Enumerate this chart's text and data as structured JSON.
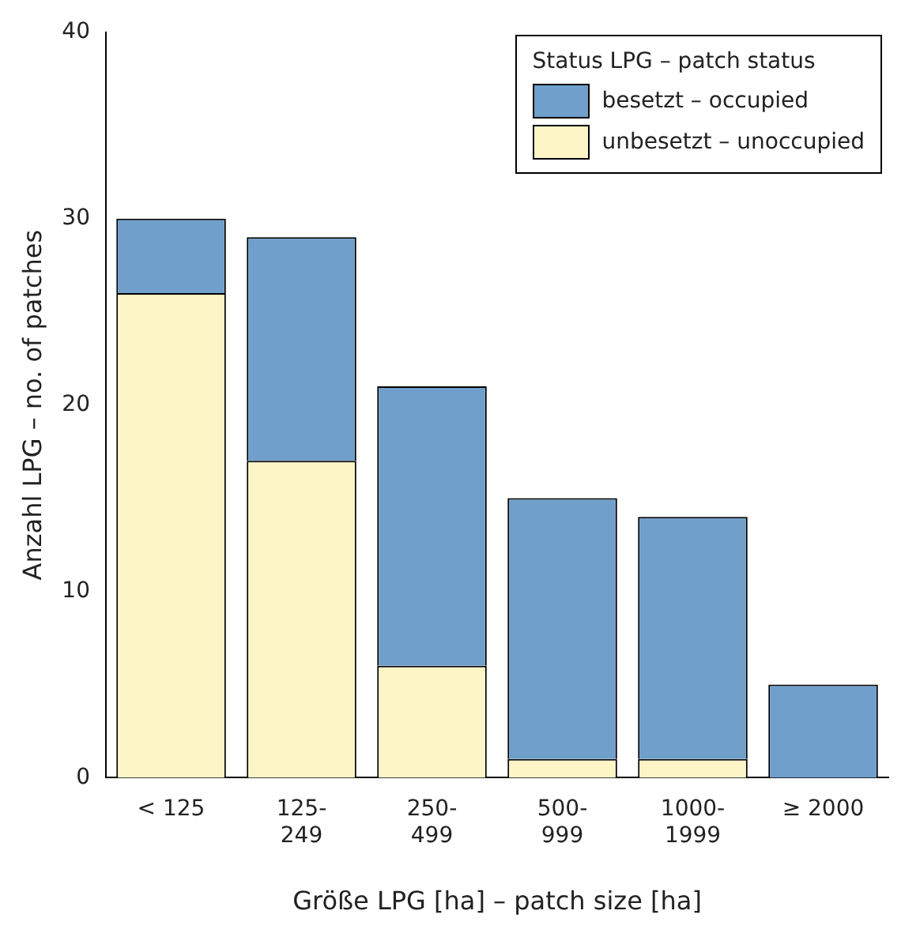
{
  "chart_data": {
    "type": "bar",
    "stacked": true,
    "xlabel": "Größe LPG [ha] – patch size [ha]",
    "ylabel": "Anzahl LPG – no. of patches",
    "legend_title": "Status LPG – patch status",
    "legend": "top right",
    "grid": false,
    "categories": [
      "< 125",
      "125-249",
      "250-499",
      "500-999",
      "1000-1999",
      "≥ 2000"
    ],
    "ylim": [
      0,
      40
    ],
    "yticks": [
      0,
      10,
      20,
      30,
      40
    ],
    "series": [
      {
        "name": "unbesetzt – unoccupied",
        "color": "#fdf5c6",
        "values": [
          26,
          17,
          6,
          1,
          1,
          0
        ]
      },
      {
        "name": "besetzt – occupied",
        "color": "#6f9fca",
        "values": [
          4,
          12,
          15,
          14,
          13,
          5
        ]
      }
    ]
  }
}
